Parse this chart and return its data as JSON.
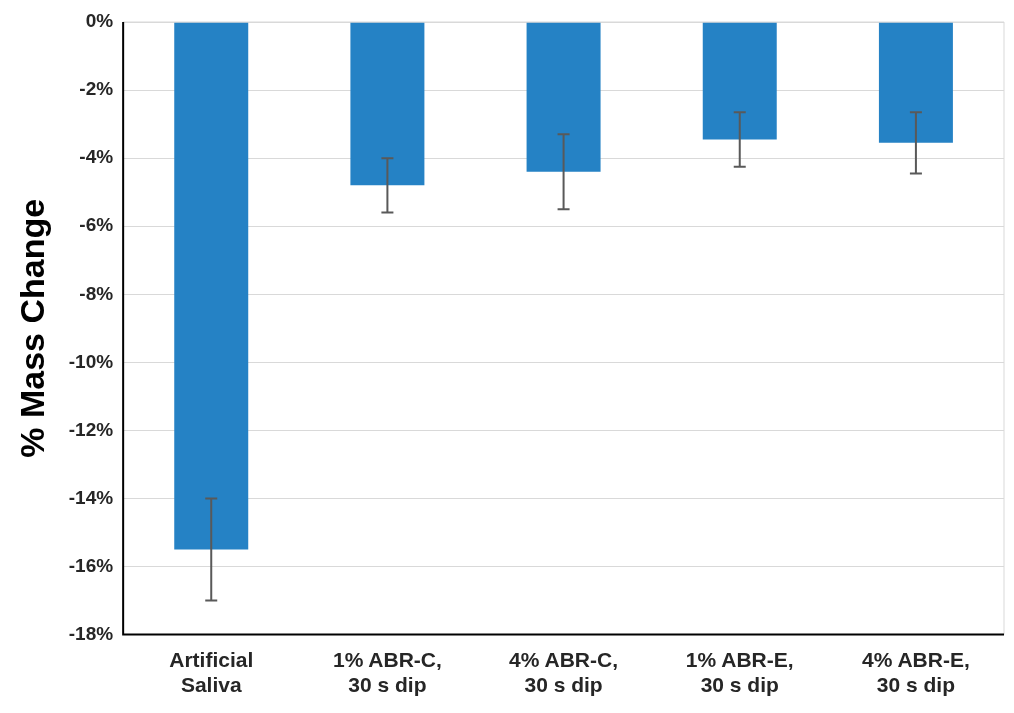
{
  "chart_data": {
    "type": "bar",
    "ylabel": "% Mass Change",
    "categories": [
      "Artificial\nSaliva",
      "1% ABR-C,\n30 s dip",
      "4% ABR-C,\n30 s dip",
      "1% ABR-E,\n30 s dip",
      "4% ABR-E,\n30 s dip"
    ],
    "values": [
      -15.5,
      -4.8,
      -4.4,
      -3.45,
      -3.55
    ],
    "errors": [
      1.5,
      0.8,
      1.1,
      0.8,
      0.9
    ],
    "color": "#2582c5",
    "ylim": [
      -18,
      0
    ],
    "yticks": [
      {
        "value": 0,
        "label": "0%"
      },
      {
        "value": -2,
        "label": "-2%"
      },
      {
        "value": -4,
        "label": "-4%"
      },
      {
        "value": -6,
        "label": "-6%"
      },
      {
        "value": -8,
        "label": "-8%"
      },
      {
        "value": -10,
        "label": "-10%"
      },
      {
        "value": -12,
        "label": "-12%"
      },
      {
        "value": -14,
        "label": "-14%"
      },
      {
        "value": -16,
        "label": "-16%"
      },
      {
        "value": -18,
        "label": "-18%"
      }
    ],
    "grid": "y",
    "legend": false
  }
}
